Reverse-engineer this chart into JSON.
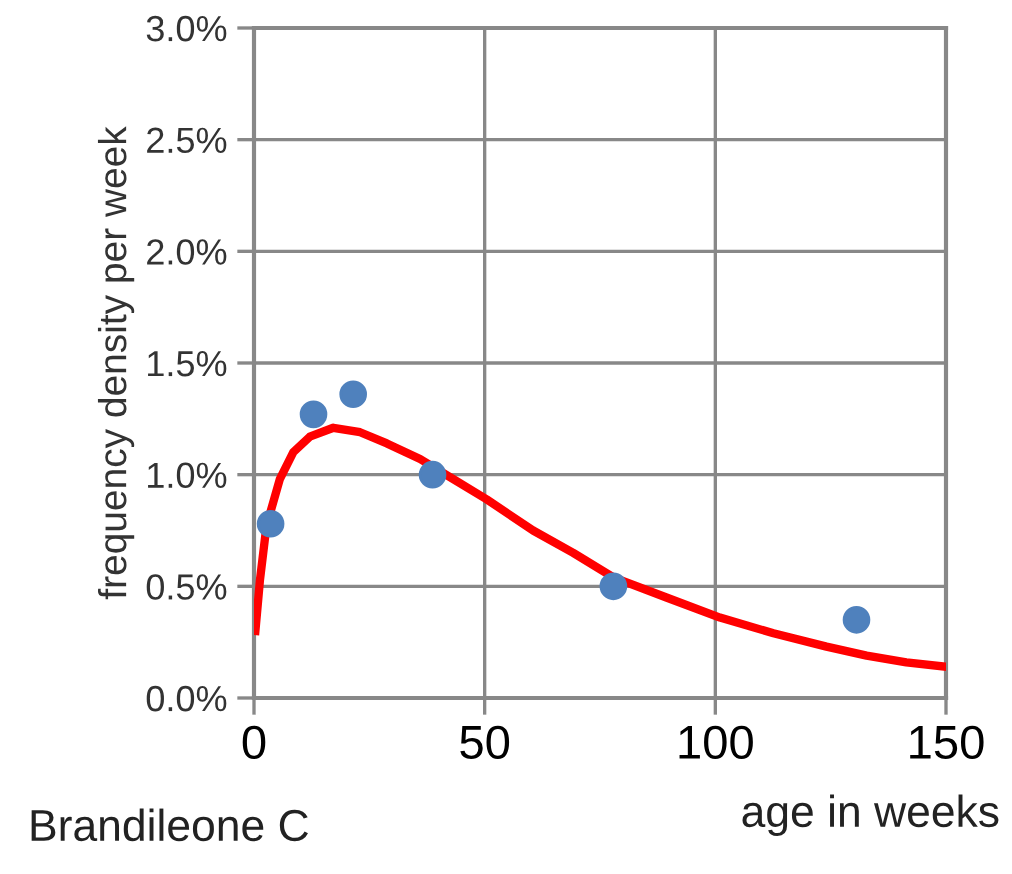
{
  "chart_data": {
    "type": "scatter",
    "xlabel": "age in weeks",
    "ylabel": "frequency density per week",
    "annotations": [
      "Brandileone C"
    ],
    "xlim": [
      0,
      150
    ],
    "xticks": [
      0,
      50,
      100,
      150
    ],
    "ylim": [
      0,
      3.0
    ],
    "yticks": [
      {
        "value": 0,
        "label": "0.0%"
      },
      {
        "value": 0.5,
        "label": "0.5%"
      },
      {
        "value": 1.0,
        "label": "1.0%"
      },
      {
        "value": 1.5,
        "label": "1.5%"
      },
      {
        "value": 2.0,
        "label": "2.0%"
      },
      {
        "value": 2.5,
        "label": "2.5%"
      },
      {
        "value": 3.0,
        "label": "3.0%"
      }
    ],
    "grid": true,
    "legend": false,
    "series": [
      {
        "type": "line",
        "color": "#ff0000",
        "marker": "none",
        "line_style": "solid",
        "x": [
          0.3,
          1.3,
          2.7,
          5.6,
          8.5,
          12.1,
          17.2,
          23.0,
          28.8,
          36.0,
          43.2,
          50.4,
          60.5,
          69.2,
          77.9,
          89.4,
          101,
          112.6,
          124.1,
          132.8,
          141.4,
          150
        ],
        "values": [
          0.3,
          0.53,
          0.77,
          0.98,
          1.1,
          1.17,
          1.21,
          1.19,
          1.14,
          1.07,
          0.98,
          0.89,
          0.75,
          0.65,
          0.54,
          0.45,
          0.36,
          0.29,
          0.23,
          0.19,
          0.16,
          0.14
        ]
      },
      {
        "color": "#4f81bd",
        "marker": "circle",
        "x": [
          3.6,
          12.9,
          21.5,
          38.7,
          77.9,
          130.6
        ],
        "values": [
          0.78,
          1.27,
          1.36,
          1.0,
          0.5,
          0.35
        ]
      }
    ]
  }
}
